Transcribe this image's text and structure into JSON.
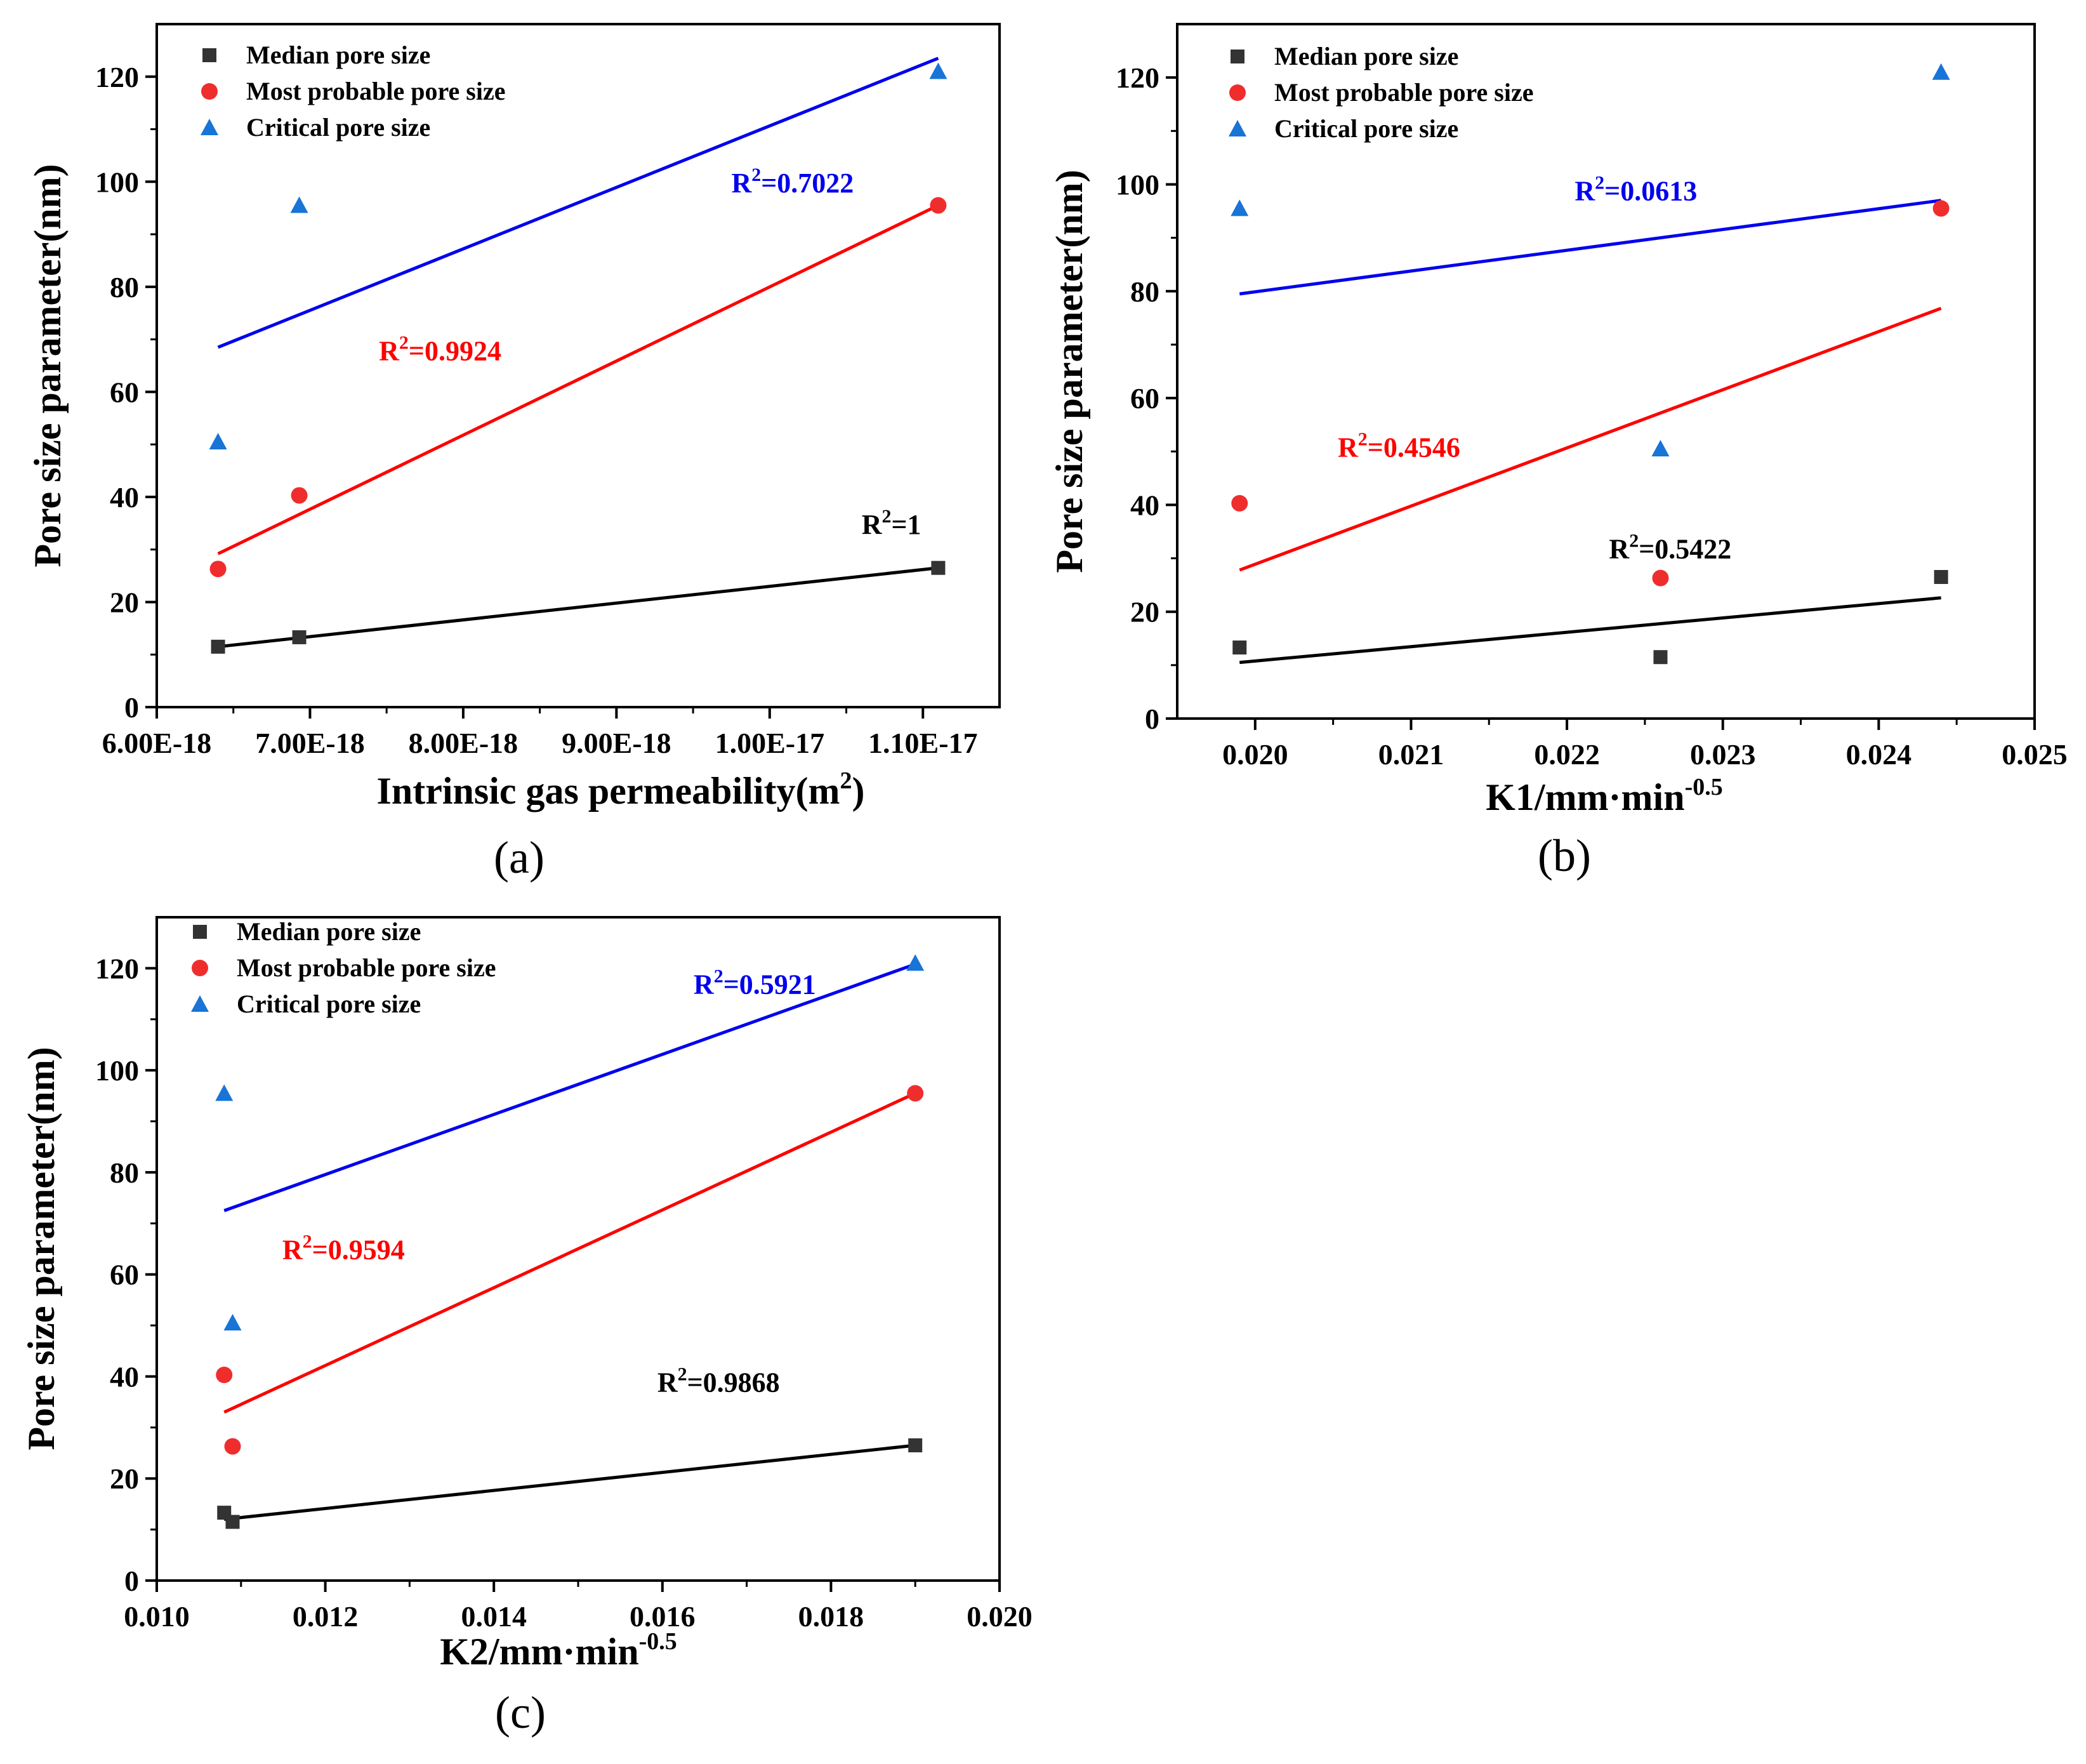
{
  "legend": {
    "median": "Median pore size",
    "most_probable": "Most probable pore size",
    "critical": "Critical pore size"
  },
  "colors": {
    "median": "#333333",
    "most_probable": "#f02d2d",
    "critical": "#1874d6",
    "fit_median": "#000000",
    "fit_most_probable": "#ff0000",
    "fit_critical": "#0000ee"
  },
  "chart_data": [
    {
      "type": "scatter",
      "panel_label": "(a)",
      "xlabel": "Intrinsic gas permeability(m",
      "xlabel_sup": "2",
      "xlabel_tail": ")",
      "ylabel": "Pore size parameter(nm)",
      "xlim": [
        6e-18,
        1.15e-17
      ],
      "ylim": [
        0,
        130
      ],
      "x_ticks": [
        6e-18,
        7e-18,
        8e-18,
        9e-18,
        1e-17,
        1.1e-17
      ],
      "x_tick_labels": [
        "6.00E-18",
        "7.00E-18",
        "8.00E-18",
        "9.00E-18",
        "1.00E-17",
        "1.10E-17"
      ],
      "y_ticks": [
        0,
        20,
        40,
        60,
        80,
        100,
        120
      ],
      "y_tick_labels": [
        "0",
        "20",
        "40",
        "60",
        "80",
        "100",
        "120"
      ],
      "series": [
        {
          "name": "Median pore size",
          "key": "median",
          "marker": "square",
          "x": [
            6.4e-18,
            6.93e-18,
            1.11e-17
          ],
          "y": [
            11.5,
            13.3,
            26.5
          ]
        },
        {
          "name": "Most probable pore size",
          "key": "most_probable",
          "marker": "circle",
          "x": [
            6.4e-18,
            6.93e-18,
            1.11e-17
          ],
          "y": [
            26.3,
            40.3,
            95.5
          ]
        },
        {
          "name": "Critical pore size",
          "key": "critical",
          "marker": "triangle",
          "x": [
            6.4e-18,
            6.93e-18,
            1.11e-17
          ],
          "y": [
            50.5,
            95.5,
            121
          ]
        }
      ],
      "fits": [
        {
          "key": "median",
          "x": [
            6.4e-18,
            1.11e-17
          ],
          "y": [
            11.5,
            26.5
          ],
          "r2_value": "=1",
          "r2_at": [
            1.06e-17,
            33
          ]
        },
        {
          "key": "most_probable",
          "x": [
            6.4e-18,
            1.11e-17
          ],
          "y": [
            29.2,
            95.5
          ],
          "r2_value": "=0.9924",
          "r2_at": [
            7.45e-18,
            66
          ]
        },
        {
          "key": "critical",
          "x": [
            6.4e-18,
            1.11e-17
          ],
          "y": [
            68.5,
            123.5
          ],
          "r2_value": "=0.7022",
          "r2_at": [
            9.75e-18,
            98
          ]
        }
      ]
    },
    {
      "type": "scatter",
      "panel_label": "(b)",
      "xlabel": "K1/mm·min",
      "xlabel_sup": "-0.5",
      "xlabel_tail": "",
      "ylabel": "Pore size parameter(nm)",
      "xlim": [
        0.0195,
        0.025
      ],
      "ylim": [
        0,
        130
      ],
      "x_ticks": [
        0.02,
        0.021,
        0.022,
        0.023,
        0.024,
        0.025
      ],
      "x_tick_labels": [
        "0.020",
        "0.021",
        "0.022",
        "0.023",
        "0.024",
        "0.025"
      ],
      "y_ticks": [
        0,
        20,
        40,
        60,
        80,
        100,
        120
      ],
      "y_tick_labels": [
        "0",
        "20",
        "40",
        "60",
        "80",
        "100",
        "120"
      ],
      "series": [
        {
          "name": "Median pore size",
          "key": "median",
          "marker": "square",
          "x": [
            0.0199,
            0.0226,
            0.0244
          ],
          "y": [
            13.3,
            11.5,
            26.5
          ]
        },
        {
          "name": "Most probable pore size",
          "key": "most_probable",
          "marker": "circle",
          "x": [
            0.0199,
            0.0226,
            0.0244
          ],
          "y": [
            40.3,
            26.3,
            95.5
          ]
        },
        {
          "name": "Critical pore size",
          "key": "critical",
          "marker": "triangle",
          "x": [
            0.0199,
            0.0226,
            0.0244
          ],
          "y": [
            95.5,
            50.5,
            121
          ]
        }
      ],
      "fits": [
        {
          "key": "median",
          "x": [
            0.0199,
            0.0244
          ],
          "y": [
            10.5,
            22.6
          ],
          "r2_value": "=0.5422",
          "r2_at": [
            0.02227,
            30
          ]
        },
        {
          "key": "most_probable",
          "x": [
            0.0199,
            0.0244
          ],
          "y": [
            27.8,
            76.8
          ],
          "r2_value": "=0.4546",
          "r2_at": [
            0.02053,
            49
          ]
        },
        {
          "key": "critical",
          "x": [
            0.0199,
            0.0244
          ],
          "y": [
            79.5,
            97.0
          ],
          "r2_value": "=0.0613",
          "r2_at": [
            0.02205,
            97
          ]
        }
      ]
    },
    {
      "type": "scatter",
      "panel_label": "(c)",
      "xlabel": "K2/mm·min",
      "xlabel_sup": "-0.5",
      "xlabel_tail": "",
      "ylabel": "Pore size parameter(nm)",
      "xlim": [
        0.01,
        0.02
      ],
      "ylim": [
        0,
        130
      ],
      "x_ticks": [
        0.01,
        0.012,
        0.014,
        0.016,
        0.018,
        0.02
      ],
      "x_tick_labels": [
        "0.010",
        "0.012",
        "0.014",
        "0.016",
        "0.018",
        "0.020"
      ],
      "y_ticks": [
        0,
        20,
        40,
        60,
        80,
        100,
        120
      ],
      "y_tick_labels": [
        "0",
        "20",
        "40",
        "60",
        "80",
        "100",
        "120"
      ],
      "series": [
        {
          "name": "Median pore size",
          "key": "median",
          "marker": "square",
          "x": [
            0.0108,
            0.0109,
            0.019
          ],
          "y": [
            13.3,
            11.5,
            26.5
          ]
        },
        {
          "name": "Most probable pore size",
          "key": "most_probable",
          "marker": "circle",
          "x": [
            0.0108,
            0.0109,
            0.019
          ],
          "y": [
            40.3,
            26.3,
            95.5
          ]
        },
        {
          "name": "Critical pore size",
          "key": "critical",
          "marker": "triangle",
          "x": [
            0.0108,
            0.0109,
            0.019
          ],
          "y": [
            95.5,
            50.5,
            121
          ]
        }
      ],
      "fits": [
        {
          "key": "median",
          "x": [
            0.0108,
            0.019
          ],
          "y": [
            12.0,
            26.5
          ],
          "r2_value": "=0.9868",
          "r2_at": [
            0.01594,
            37
          ]
        },
        {
          "key": "most_probable",
          "x": [
            0.0108,
            0.019
          ],
          "y": [
            33.0,
            95.5
          ],
          "r2_value": "=0.9594",
          "r2_at": [
            0.01149,
            63
          ]
        },
        {
          "key": "critical",
          "x": [
            0.0108,
            0.019
          ],
          "y": [
            72.5,
            120.8
          ],
          "r2_value": "=0.5921",
          "r2_at": [
            0.01637,
            115
          ]
        }
      ]
    }
  ],
  "r2_prefix": "R",
  "r2_sup": "2"
}
